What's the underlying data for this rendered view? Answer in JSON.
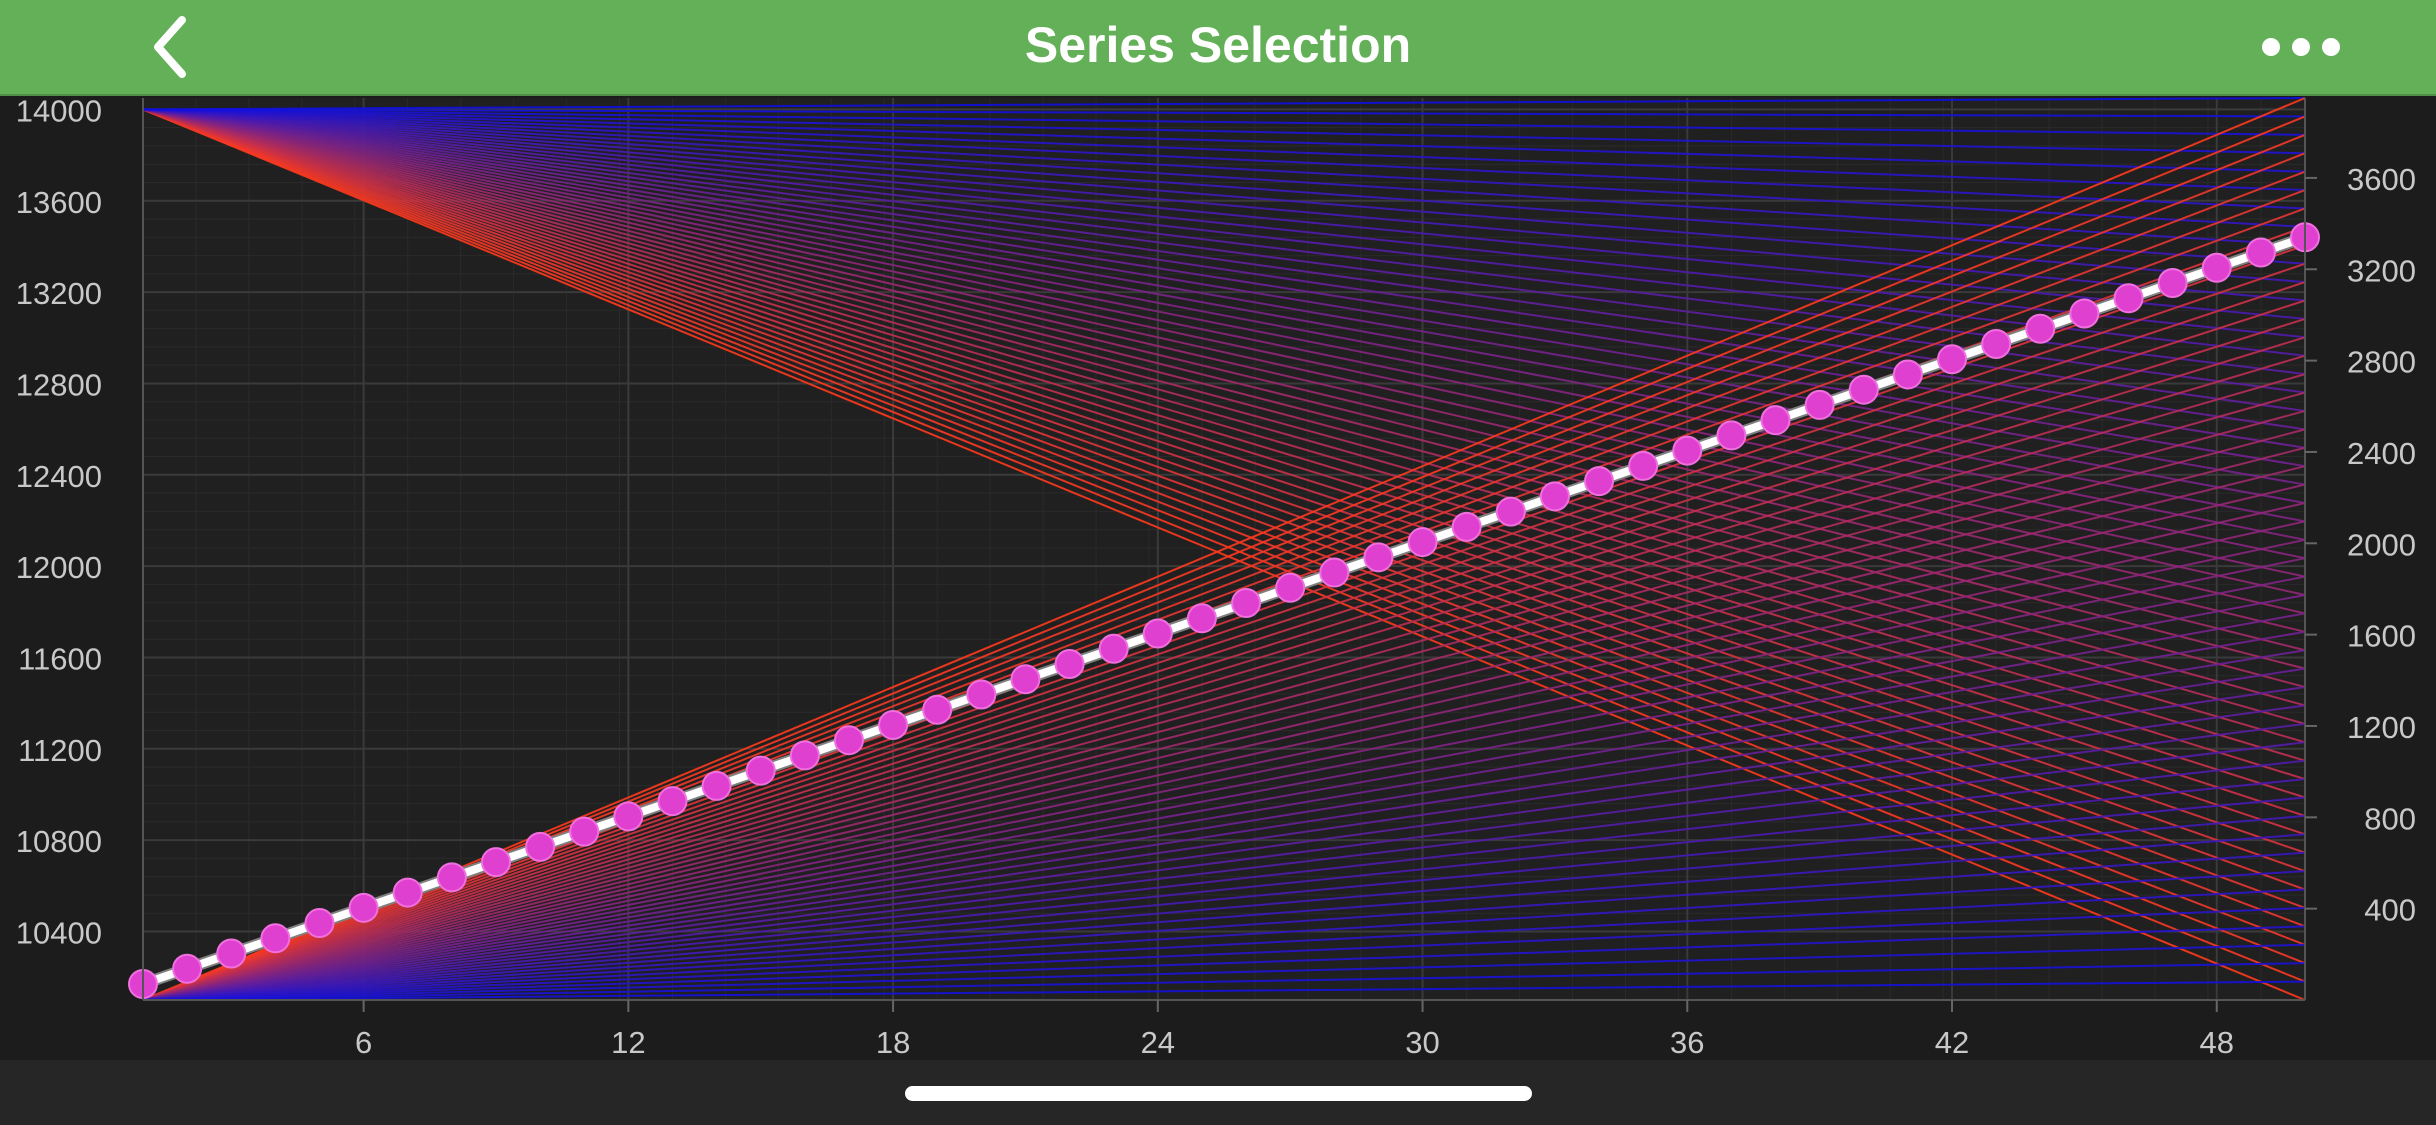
{
  "header": {
    "title": "Series Selection",
    "back_icon": "chevron-left-icon",
    "more_icon": "more-dots-icon"
  },
  "colors": {
    "header_bg": "#64b058",
    "chart_bg": "#202020",
    "grid_major": "#3a3a3a",
    "grid_minor": "#2a2a2a",
    "axis_text": "#c8c8c8",
    "series_start": "#ff3a1e",
    "series_end": "#1010e0",
    "selected_stroke": "#ffffff",
    "selected_marker": "#e040d0"
  },
  "chart_data": {
    "type": "line",
    "title": "",
    "xlabel": "",
    "ylabel": "",
    "grid": true,
    "legend": "none",
    "x_axis": {
      "min": 1,
      "max": 50,
      "ticks": [
        6,
        12,
        18,
        24,
        30,
        36,
        42,
        48
      ],
      "tick_labels": [
        "6",
        "12",
        "18",
        "24",
        "30",
        "36",
        "42",
        "48"
      ]
    },
    "y_axis_left": {
      "min": 10100,
      "max": 14050,
      "ticks": [
        10400,
        10800,
        11200,
        11600,
        12000,
        12400,
        12800,
        13200,
        13600,
        14000
      ],
      "tick_labels": [
        "10400",
        "10800",
        "11200",
        "11600",
        "12000",
        "12400",
        "12800",
        "13200",
        "13600",
        "14000"
      ]
    },
    "y_axis_right": {
      "min": 0,
      "max": 3950,
      "ticks": [
        400,
        800,
        1200,
        1600,
        2000,
        2400,
        2800,
        3200,
        3600
      ],
      "tick_labels": [
        "400",
        "800",
        "1200",
        "1600",
        "2000",
        "2400",
        "2800",
        "3200",
        "3600"
      ]
    },
    "series_groups": [
      {
        "axis": "left",
        "description_count": 50,
        "start_x": 1,
        "start_y": 14000,
        "end_x": 50,
        "end_y_range": [
          10100,
          14050
        ],
        "shape": "linear fan"
      },
      {
        "axis": "left",
        "description_count": 50,
        "start_x": 1,
        "start_y": 10100,
        "end_x": 50,
        "end_y_range": [
          10100,
          14050
        ],
        "shape": "linear fan"
      }
    ],
    "selected_series": {
      "axis": "left",
      "x": [
        1,
        50
      ],
      "y": [
        10170,
        13440
      ],
      "marker": "circle",
      "point_count": 50
    }
  }
}
